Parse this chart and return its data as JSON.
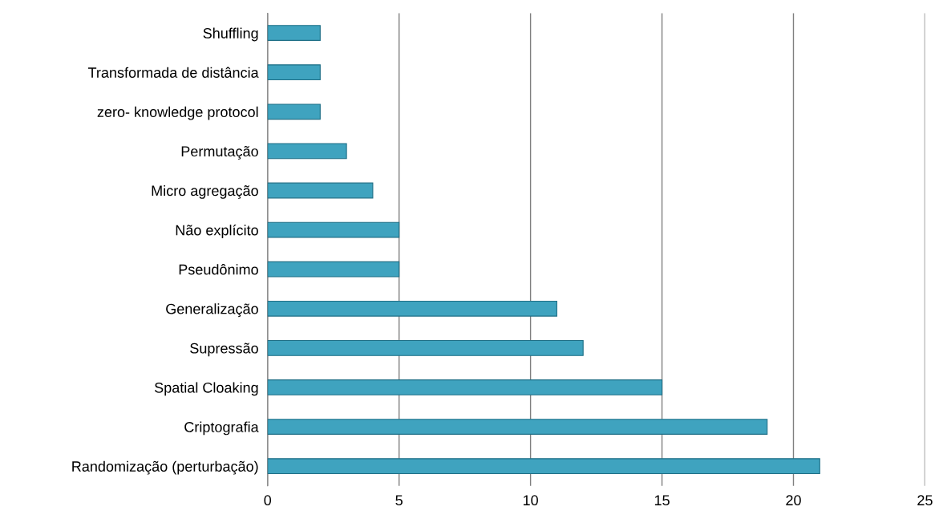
{
  "chart_data": {
    "type": "bar",
    "orientation": "horizontal",
    "categories": [
      "Shuffling",
      "Transformada de distância",
      "zero- knowledge protocol",
      "Permutação",
      "Micro agregação",
      "Não explícito",
      "Pseudônimo",
      "Generalização",
      "Supressão",
      "Spatial Cloaking",
      "Criptografia",
      "Randomização (perturbação)"
    ],
    "values": [
      2,
      2,
      2,
      3,
      4,
      5,
      5,
      11,
      12,
      15,
      19,
      21
    ],
    "color": "#3fa3bf",
    "xlim": [
      0,
      25
    ],
    "xticks": [
      0,
      5,
      10,
      15,
      20,
      25
    ],
    "grid": "x"
  }
}
